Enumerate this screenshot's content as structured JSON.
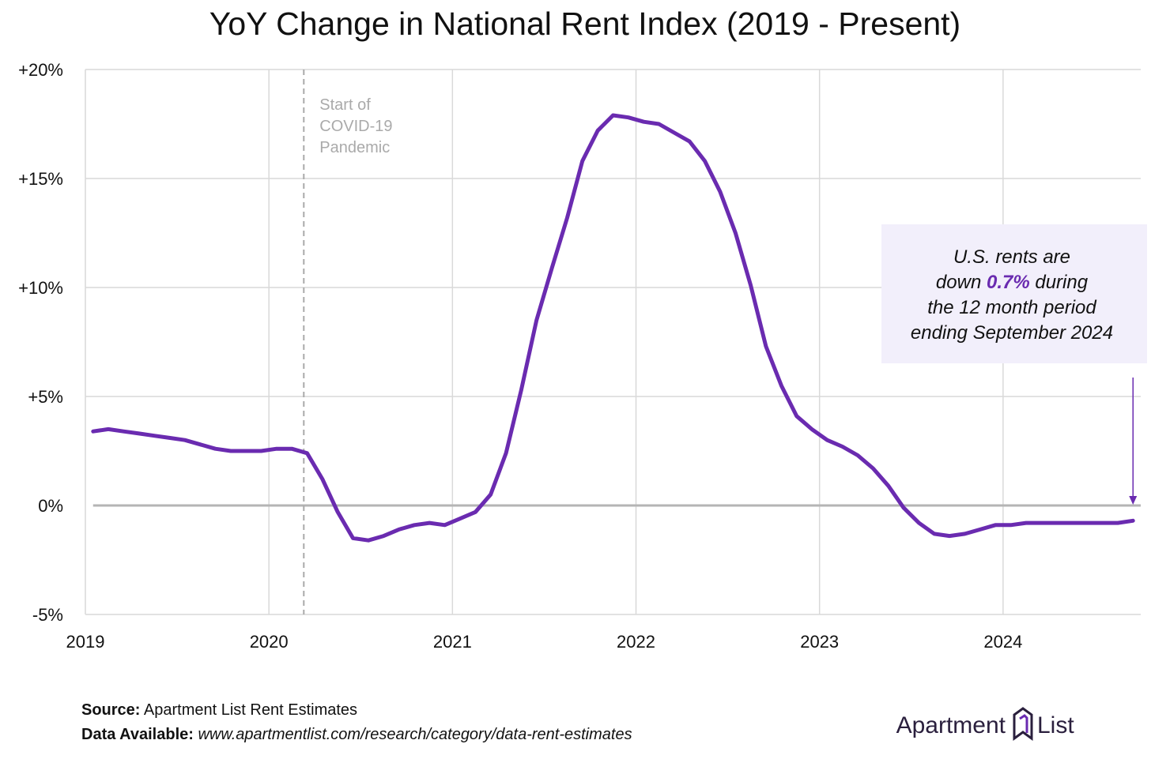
{
  "chart_data": {
    "type": "line",
    "title": "YoY Change in National Rent Index (2019 - Present)",
    "color": "#6a2bb0",
    "x": [
      2019.042,
      2019.125,
      2019.208,
      2019.292,
      2019.375,
      2019.458,
      2019.542,
      2019.625,
      2019.708,
      2019.792,
      2019.875,
      2019.958,
      2020.042,
      2020.125,
      2020.208,
      2020.292,
      2020.375,
      2020.458,
      2020.542,
      2020.625,
      2020.708,
      2020.792,
      2020.875,
      2020.958,
      2021.042,
      2021.125,
      2021.208,
      2021.292,
      2021.375,
      2021.458,
      2021.542,
      2021.625,
      2021.708,
      2021.792,
      2021.875,
      2021.958,
      2022.042,
      2022.125,
      2022.208,
      2022.292,
      2022.375,
      2022.458,
      2022.542,
      2022.625,
      2022.708,
      2022.792,
      2022.875,
      2022.958,
      2023.042,
      2023.125,
      2023.208,
      2023.292,
      2023.375,
      2023.458,
      2023.542,
      2023.625,
      2023.708,
      2023.792,
      2023.875,
      2023.958,
      2024.042,
      2024.125,
      2024.208,
      2024.292,
      2024.375,
      2024.458,
      2024.542,
      2024.625,
      2024.708
    ],
    "values": [
      3.4,
      3.5,
      3.4,
      3.3,
      3.2,
      3.1,
      3.0,
      2.8,
      2.6,
      2.5,
      2.5,
      2.5,
      2.6,
      2.6,
      2.4,
      1.2,
      -0.3,
      -1.5,
      -1.6,
      -1.4,
      -1.1,
      -0.9,
      -0.8,
      -0.9,
      -0.6,
      -0.3,
      0.5,
      2.4,
      5.3,
      8.5,
      10.9,
      13.2,
      15.8,
      17.2,
      17.9,
      17.8,
      17.6,
      17.5,
      17.1,
      16.7,
      15.8,
      14.4,
      12.5,
      10.1,
      7.3,
      5.5,
      4.1,
      3.5,
      3.0,
      2.7,
      2.3,
      1.7,
      0.9,
      -0.1,
      -0.8,
      -1.3,
      -1.4,
      -1.3,
      -1.1,
      -0.9,
      -0.9,
      -0.8,
      -0.8,
      -0.8,
      -0.8,
      -0.8,
      -0.8,
      -0.8,
      -0.7
    ],
    "xlim": [
      2019,
      2024.75
    ],
    "xticks": [
      2019,
      2020,
      2021,
      2022,
      2023,
      2024
    ],
    "ylim": [
      -5,
      20
    ],
    "yticks": [
      {
        "value": -5,
        "label": "-5%"
      },
      {
        "value": 0,
        "label": "0%"
      },
      {
        "value": 5,
        "label": "+5%"
      },
      {
        "value": 10,
        "label": "+10%"
      },
      {
        "value": 15,
        "label": "+15%"
      },
      {
        "value": 20,
        "label": "+20%"
      }
    ],
    "grid": true,
    "event": {
      "x": 2020.19,
      "lines": [
        "Start of",
        "COVID-19",
        "Pandemic"
      ]
    },
    "callout": {
      "line1": "U.S. rents are",
      "line2_before": "down",
      "highlight": "0.7%",
      "line2_after": "during",
      "line3": "the 12 month period",
      "line4": "ending September 2024"
    },
    "source_label": "Source:",
    "source": "Apartment List Rent Estimates",
    "data_label": "Data Available:",
    "data_url": "www.apartmentlist.com/research/category/data-rent-estimates",
    "brand_left": "Apartment",
    "brand_right": "List"
  }
}
